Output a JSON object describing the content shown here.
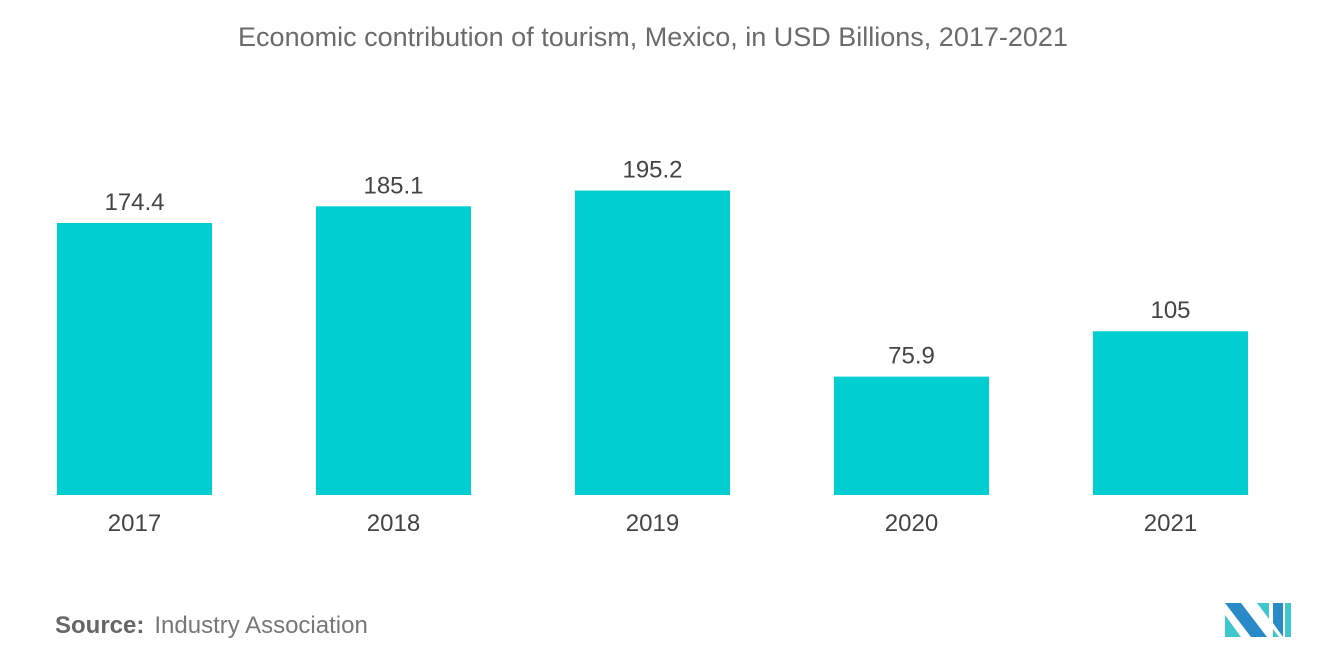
{
  "chart_data": {
    "type": "bar",
    "title": "Economic contribution of tourism, Mexico, in USD Billions, 2017-2021",
    "categories": [
      "2017",
      "2018",
      "2019",
      "2020",
      "2021"
    ],
    "values": [
      174.4,
      185.1,
      195.2,
      75.9,
      105
    ],
    "value_labels": [
      "174.4",
      "185.1",
      "195.2",
      "75.9",
      "105"
    ],
    "xlabel": "",
    "ylabel": "",
    "ylim": [
      0,
      200
    ],
    "grid": false,
    "bar_color": "#00ced1"
  },
  "source": {
    "label": "Source:",
    "text": "Industry Association"
  },
  "logo": {
    "colors": [
      "#2a8ac8",
      "#3fc8cc"
    ]
  }
}
